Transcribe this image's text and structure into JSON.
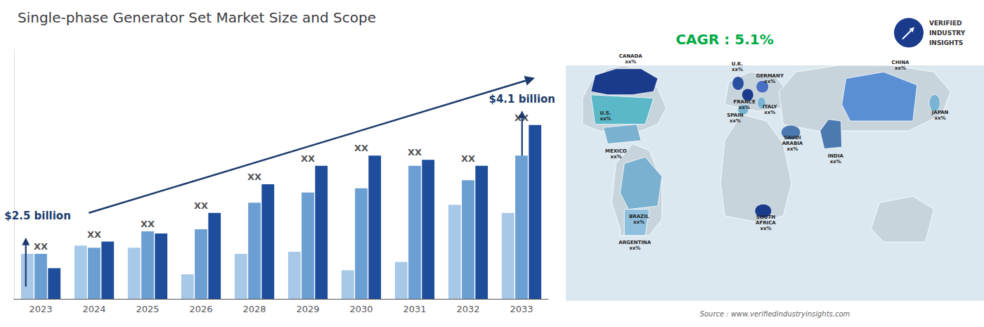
{
  "chart_data": {
    "type": "bar",
    "title": "Single-phase Generator Set Market Size and Scope",
    "categories": [
      "2023",
      "2024",
      "2025",
      "2026",
      "2028",
      "2029",
      "2030",
      "2031",
      "2032",
      "2033"
    ],
    "series": [
      {
        "color": "#a8c8e8",
        "values": [
          0.22,
          0.26,
          0.25,
          0.12,
          0.22,
          0.23,
          0.14,
          0.18,
          0.46,
          0.42
        ]
      },
      {
        "color": "#6b9fd4",
        "values": [
          0.22,
          0.25,
          0.33,
          0.34,
          0.47,
          0.52,
          0.54,
          0.65,
          0.58,
          0.7
        ]
      },
      {
        "color": "#1e4d9b",
        "values": [
          0.15,
          0.28,
          0.32,
          0.42,
          0.56,
          0.65,
          0.7,
          0.68,
          0.65,
          0.85
        ]
      }
    ],
    "ylim": [
      0,
      1.22
    ],
    "tick_labels": "x",
    "grid": false,
    "group_labels": {
      "text": "XX",
      "values": [
        0.22,
        0.28,
        0.33,
        0.42,
        0.56,
        0.65,
        0.7,
        0.68,
        0.65,
        0.85
      ]
    },
    "trend_line_color": "#1a3a6b",
    "annotations": [
      {
        "text": "$2.5 billion",
        "color": "#1a3a6b"
      },
      {
        "text": "$4.1 billion",
        "color": "#1a3a6b"
      },
      {
        "text": "CAGR : 5.1%",
        "color": "#00aa44"
      },
      {
        "text": "Source : www.verifiedindustryinsights.com",
        "color": "#666666"
      },
      {
        "text": "VERIFIED\nINDUSTRY\nINSIGHTS",
        "color": "#333333"
      }
    ],
    "map": {
      "ocean_color": "#dce8f0",
      "land_color": "#c8d4dc",
      "logo_color": "#1a3a8c",
      "countries": [
        {
          "label": "CANADA\nxx%",
          "color": "#1a3a8c"
        },
        {
          "label": "U.S.\nxx%",
          "color": "#5bb8c8"
        },
        {
          "label": "MEXICO\nxx%",
          "color": "#7ab0d0"
        },
        {
          "label": "BRAZIL\nxx%",
          "color": "#7ab0d0"
        },
        {
          "label": "ARGENTINA\nxx%",
          "color": "#8dc0dc"
        },
        {
          "label": "U.K.\nxx%",
          "color": "#2a4fa0"
        },
        {
          "label": "FRANCE\nxx%",
          "color": "#1a3a8c"
        },
        {
          "label": "SPAIN\nxx%",
          "color": "#7ab4d4"
        },
        {
          "label": "GERMANY\nxx%",
          "color": "#4a6fc0"
        },
        {
          "label": "ITALY\nxx%",
          "color": "#7ab4d4"
        },
        {
          "label": "SAUDI\nARABIA\nxx%",
          "color": "#4a7ab0"
        },
        {
          "label": "SOUTH\nAFRICA\nxx%",
          "color": "#1a3a8c"
        },
        {
          "label": "CHINA\nxx%",
          "color": "#5b8fd4"
        },
        {
          "label": "INDIA\nxx%",
          "color": "#4a7ab0"
        },
        {
          "label": "JAPAN\nxx%",
          "color": "#7ab4d4"
        }
      ]
    }
  }
}
